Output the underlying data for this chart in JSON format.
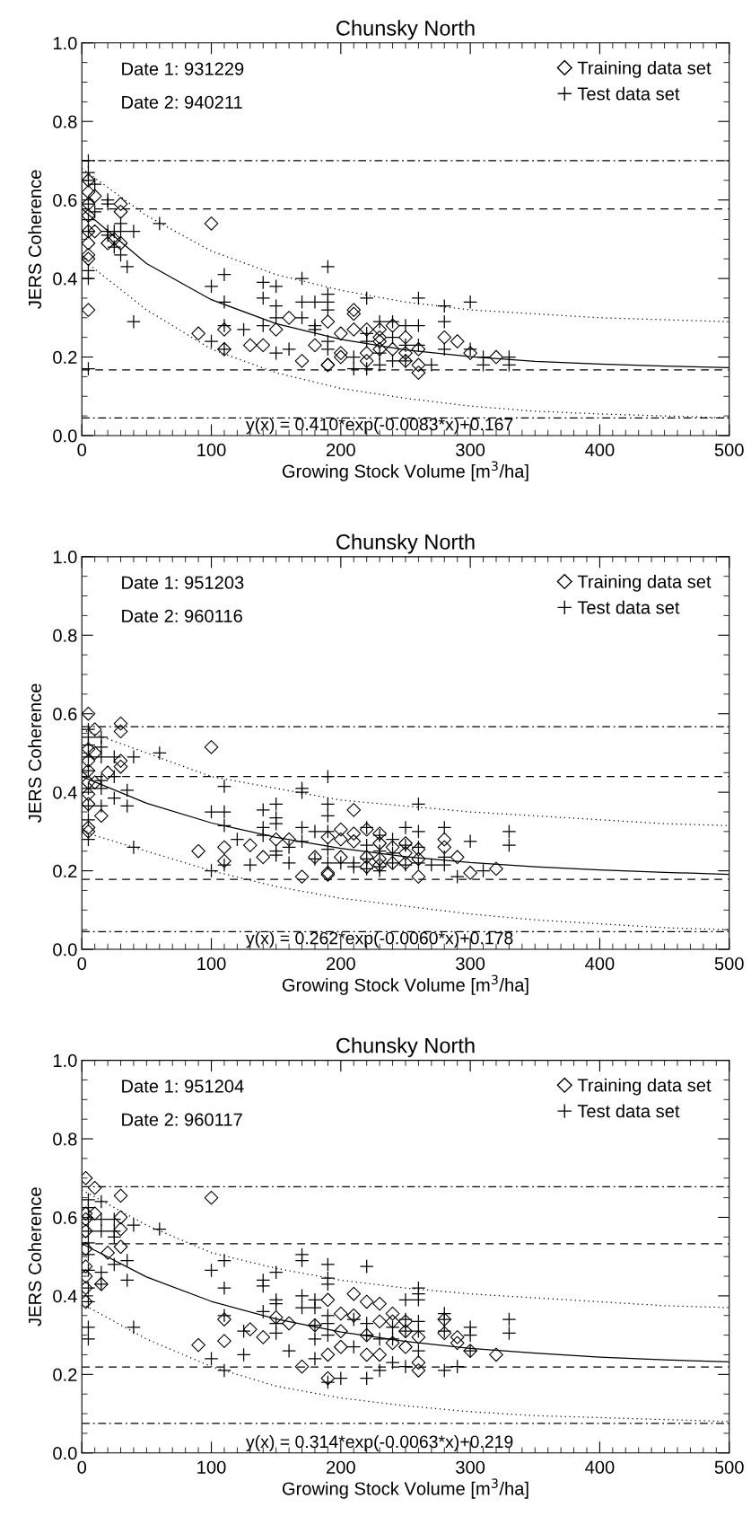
{
  "chart_data": [
    {
      "type": "scatter",
      "title": "Chunsky North",
      "xlabel": "Growing Stock Volume [m$^{3}$/ha]",
      "ylabel": "JERS Coherence",
      "annotations": [
        "Date 1: 931229",
        "Date 2: 940211",
        "y(x) = 0.410*exp(-0.0083*x)+0.167"
      ],
      "xlim": [
        0,
        500
      ],
      "ylim": [
        0,
        1
      ],
      "xticks": [
        0,
        {
          "value": 10,
          "label": null
        },
        {
          "value": 20,
          "label": null
        },
        {
          "value": 30,
          "label": null
        },
        {
          "value": 40,
          "label": null
        },
        {
          "value": 50,
          "label": null
        },
        {
          "value": 60,
          "label": null
        },
        {
          "value": 70,
          "label": null
        },
        {
          "value": 80,
          "label": null
        },
        {
          "value": 90,
          "label": null
        },
        100,
        {
          "value": 110,
          "label": null
        },
        {
          "value": 120,
          "label": null
        },
        {
          "value": 130,
          "label": null
        },
        {
          "value": 140,
          "label": null
        },
        {
          "value": 150,
          "label": null
        },
        {
          "value": 160,
          "label": null
        },
        {
          "value": 170,
          "label": null
        },
        {
          "value": 180,
          "label": null
        },
        {
          "value": 190,
          "label": null
        },
        200,
        {
          "value": 210,
          "label": null
        },
        {
          "value": 220,
          "label": null
        },
        {
          "value": 230,
          "label": null
        },
        {
          "value": 240,
          "label": null
        },
        {
          "value": 250,
          "label": null
        },
        {
          "value": 260,
          "label": null
        },
        {
          "value": 270,
          "label": null
        },
        {
          "value": 280,
          "label": null
        },
        {
          "value": 290,
          "label": null
        },
        300,
        {
          "value": 310,
          "label": null
        },
        {
          "value": 320,
          "label": null
        },
        {
          "value": 330,
          "label": null
        },
        {
          "value": 340,
          "label": null
        },
        {
          "value": 350,
          "label": null
        },
        {
          "value": 360,
          "label": null
        },
        {
          "value": 370,
          "label": null
        },
        {
          "value": 380,
          "label": null
        },
        {
          "value": 390,
          "label": null
        },
        400,
        {
          "value": 410,
          "label": null
        },
        {
          "value": 420,
          "label": null
        },
        {
          "value": 430,
          "label": null
        },
        {
          "value": 440,
          "label": null
        },
        {
          "value": 450,
          "label": null
        },
        {
          "value": 460,
          "label": null
        },
        {
          "value": 470,
          "label": null
        },
        {
          "value": 480,
          "label": null
        },
        {
          "value": 490,
          "label": null
        },
        500
      ],
      "yticks": [
        {
          "value": 0,
          "label": "0.0"
        },
        {
          "value": 0.05,
          "label": null
        },
        {
          "value": 0.1,
          "label": null
        },
        {
          "value": 0.15,
          "label": null
        },
        0.2,
        {
          "value": 0.25,
          "label": null
        },
        {
          "value": 0.3,
          "label": null
        },
        {
          "value": 0.35,
          "label": null
        },
        0.4,
        {
          "value": 0.45,
          "label": null
        },
        {
          "value": 0.5,
          "label": null
        },
        {
          "value": 0.55,
          "label": null
        },
        0.6,
        {
          "value": 0.65,
          "label": null
        },
        {
          "value": 0.7,
          "label": null
        },
        {
          "value": 0.75,
          "label": null
        },
        0.8,
        {
          "value": 0.85,
          "label": null
        },
        {
          "value": 0.9,
          "label": null
        },
        {
          "value": 0.95,
          "label": null
        },
        {
          "value": 1,
          "label": "1.0"
        }
      ],
      "grid": false,
      "legend": "top right",
      "ref_lines": [
        {
          "axis": "y",
          "value": 0.7,
          "line_style": "dashdot",
          "color": "#000000"
        },
        {
          "axis": "y",
          "value": 0.577,
          "line_style": "dashed",
          "color": "#000000"
        },
        {
          "axis": "y",
          "value": 0.167,
          "line_style": "dashed",
          "color": "#000000"
        },
        {
          "axis": "y",
          "value": 0.045,
          "line_style": "dashdot",
          "color": "#000000"
        }
      ],
      "series": [
        {
          "name": "Training data set",
          "marker": "diamond",
          "color": "#000000",
          "x": [
            5,
            5,
            5,
            5,
            5,
            5,
            5,
            5,
            5,
            10,
            10,
            20,
            25,
            30,
            30,
            30,
            100,
            90,
            110,
            110,
            130,
            140,
            150,
            160,
            170,
            180,
            190,
            190,
            190,
            200,
            200,
            200,
            210,
            210,
            210,
            220,
            220,
            220,
            230,
            230,
            230,
            230,
            240,
            240,
            250,
            250,
            250,
            260,
            260,
            260,
            280,
            290,
            300,
            320
          ],
          "values": [
            0.65,
            0.62,
            0.59,
            0.56,
            0.52,
            0.49,
            0.46,
            0.45,
            0.32,
            0.61,
            0.52,
            0.49,
            0.5,
            0.59,
            0.57,
            0.49,
            0.54,
            0.26,
            0.27,
            0.22,
            0.23,
            0.23,
            0.27,
            0.3,
            0.19,
            0.23,
            0.29,
            0.18,
            0.18,
            0.26,
            0.21,
            0.2,
            0.32,
            0.31,
            0.27,
            0.27,
            0.21,
            0.19,
            0.27,
            0.25,
            0.24,
            0.22,
            0.28,
            0.22,
            0.25,
            0.21,
            0.19,
            0.22,
            0.16,
            0.18,
            0.25,
            0.24,
            0.21,
            0.2
          ]
        },
        {
          "name": "Test data set",
          "marker": "cross",
          "color": "#000000",
          "x": [
            5,
            5,
            5,
            5,
            5,
            5,
            5,
            5,
            5,
            10,
            10,
            20,
            20,
            20,
            20,
            25,
            25,
            30,
            30,
            30,
            35,
            40,
            40,
            60,
            100,
            100,
            110,
            110,
            110,
            110,
            125,
            140,
            140,
            140,
            150,
            150,
            150,
            150,
            160,
            170,
            170,
            170,
            180,
            180,
            180,
            190,
            190,
            190,
            190,
            190,
            190,
            210,
            210,
            220,
            220,
            220,
            220,
            230,
            230,
            230,
            240,
            240,
            240,
            250,
            250,
            250,
            260,
            260,
            260,
            270,
            280,
            280,
            280,
            300,
            300,
            310,
            310,
            330,
            330
          ],
          "values": [
            0.7,
            0.67,
            0.65,
            0.59,
            0.55,
            0.52,
            0.42,
            0.4,
            0.17,
            0.64,
            0.57,
            0.6,
            0.59,
            0.52,
            0.51,
            0.52,
            0.48,
            0.54,
            0.52,
            0.46,
            0.43,
            0.52,
            0.29,
            0.54,
            0.38,
            0.24,
            0.41,
            0.34,
            0.28,
            0.22,
            0.27,
            0.39,
            0.35,
            0.28,
            0.38,
            0.33,
            0.3,
            0.21,
            0.22,
            0.4,
            0.34,
            0.3,
            0.34,
            0.28,
            0.27,
            0.43,
            0.36,
            0.34,
            0.32,
            0.24,
            0.22,
            0.2,
            0.17,
            0.35,
            0.26,
            0.24,
            0.17,
            0.29,
            0.21,
            0.18,
            0.29,
            0.25,
            0.19,
            0.28,
            0.23,
            0.19,
            0.35,
            0.28,
            0.23,
            0.18,
            0.33,
            0.29,
            0.22,
            0.34,
            0.22,
            0.2,
            0.18,
            0.2,
            0.18
          ]
        },
        {
          "type": "line",
          "line_style": "solid",
          "color": "#000000",
          "x": [
            0,
            50,
            100,
            150,
            200,
            250,
            300,
            350,
            400,
            450,
            500
          ],
          "values": [
            0.577,
            0.438,
            0.346,
            0.285,
            0.245,
            0.218,
            0.201,
            0.189,
            0.182,
            0.177,
            0.173
          ]
        },
        {
          "type": "line",
          "line_style": "dotted",
          "color": "#000000",
          "x": [
            0,
            50,
            100,
            150,
            200,
            250,
            300,
            350,
            400,
            450,
            500
          ],
          "values": [
            0.68,
            0.56,
            0.47,
            0.41,
            0.37,
            0.34,
            0.32,
            0.31,
            0.3,
            0.295,
            0.29
          ]
        },
        {
          "type": "line",
          "line_style": "dotted",
          "color": "#000000",
          "x": [
            0,
            50,
            100,
            150,
            200,
            250,
            300,
            350,
            400,
            450,
            500
          ],
          "values": [
            0.45,
            0.32,
            0.22,
            0.16,
            0.12,
            0.095,
            0.075,
            0.062,
            0.055,
            0.05,
            0.045
          ]
        }
      ]
    },
    {
      "type": "scatter",
      "title": "Chunsky North",
      "xlabel": "Growing Stock Volume [m$^{3}$/ha]",
      "ylabel": "JERS Coherence",
      "annotations": [
        "Date 1: 951203",
        "Date 2: 960116",
        "y(x) = 0.262*exp(-0.0060*x)+0.178"
      ],
      "xlim": [
        0,
        500
      ],
      "ylim": [
        0,
        1
      ],
      "xticks": [
        0,
        {
          "value": 10,
          "label": null
        },
        {
          "value": 20,
          "label": null
        },
        {
          "value": 30,
          "label": null
        },
        {
          "value": 40,
          "label": null
        },
        {
          "value": 50,
          "label": null
        },
        {
          "value": 60,
          "label": null
        },
        {
          "value": 70,
          "label": null
        },
        {
          "value": 80,
          "label": null
        },
        {
          "value": 90,
          "label": null
        },
        100,
        {
          "value": 110,
          "label": null
        },
        {
          "value": 120,
          "label": null
        },
        {
          "value": 130,
          "label": null
        },
        {
          "value": 140,
          "label": null
        },
        {
          "value": 150,
          "label": null
        },
        {
          "value": 160,
          "label": null
        },
        {
          "value": 170,
          "label": null
        },
        {
          "value": 180,
          "label": null
        },
        {
          "value": 190,
          "label": null
        },
        200,
        {
          "value": 210,
          "label": null
        },
        {
          "value": 220,
          "label": null
        },
        {
          "value": 230,
          "label": null
        },
        {
          "value": 240,
          "label": null
        },
        {
          "value": 250,
          "label": null
        },
        {
          "value": 260,
          "label": null
        },
        {
          "value": 270,
          "label": null
        },
        {
          "value": 280,
          "label": null
        },
        {
          "value": 290,
          "label": null
        },
        300,
        {
          "value": 310,
          "label": null
        },
        {
          "value": 320,
          "label": null
        },
        {
          "value": 330,
          "label": null
        },
        {
          "value": 340,
          "label": null
        },
        {
          "value": 350,
          "label": null
        },
        {
          "value": 360,
          "label": null
        },
        {
          "value": 370,
          "label": null
        },
        {
          "value": 380,
          "label": null
        },
        {
          "value": 390,
          "label": null
        },
        400,
        {
          "value": 410,
          "label": null
        },
        {
          "value": 420,
          "label": null
        },
        {
          "value": 430,
          "label": null
        },
        {
          "value": 440,
          "label": null
        },
        {
          "value": 450,
          "label": null
        },
        {
          "value": 460,
          "label": null
        },
        {
          "value": 470,
          "label": null
        },
        {
          "value": 480,
          "label": null
        },
        {
          "value": 490,
          "label": null
        },
        500
      ],
      "yticks": [
        {
          "value": 0,
          "label": "0.0"
        },
        {
          "value": 0.05,
          "label": null
        },
        {
          "value": 0.1,
          "label": null
        },
        {
          "value": 0.15,
          "label": null
        },
        0.2,
        {
          "value": 0.25,
          "label": null
        },
        {
          "value": 0.3,
          "label": null
        },
        {
          "value": 0.35,
          "label": null
        },
        0.4,
        {
          "value": 0.45,
          "label": null
        },
        {
          "value": 0.5,
          "label": null
        },
        {
          "value": 0.55,
          "label": null
        },
        0.6,
        {
          "value": 0.65,
          "label": null
        },
        {
          "value": 0.7,
          "label": null
        },
        {
          "value": 0.75,
          "label": null
        },
        0.8,
        {
          "value": 0.85,
          "label": null
        },
        {
          "value": 0.9,
          "label": null
        },
        {
          "value": 0.95,
          "label": null
        },
        {
          "value": 1,
          "label": "1.0"
        }
      ],
      "grid": false,
      "legend": "top right",
      "ref_lines": [
        {
          "axis": "y",
          "value": 0.567,
          "line_style": "dashdot",
          "color": "#000000"
        },
        {
          "axis": "y",
          "value": 0.44,
          "line_style": "dashed",
          "color": "#000000"
        },
        {
          "axis": "y",
          "value": 0.178,
          "line_style": "dashed",
          "color": "#000000"
        },
        {
          "axis": "y",
          "value": 0.045,
          "line_style": "dashdot",
          "color": "#000000"
        }
      ],
      "series": [
        {
          "name": "Training data set",
          "marker": "diamond",
          "color": "#000000",
          "x": [
            5,
            5,
            5,
            5,
            5,
            5,
            5,
            5,
            5,
            10,
            10,
            10,
            15,
            20,
            30,
            30,
            30,
            30,
            100,
            90,
            110,
            110,
            130,
            140,
            150,
            160,
            170,
            180,
            190,
            190,
            190,
            200,
            200,
            200,
            210,
            210,
            210,
            220,
            220,
            220,
            230,
            230,
            230,
            230,
            240,
            240,
            250,
            250,
            250,
            260,
            260,
            260,
            280,
            280,
            290,
            300,
            320
          ],
          "values": [
            0.6,
            0.51,
            0.48,
            0.455,
            0.425,
            0.395,
            0.37,
            0.31,
            0.3,
            0.56,
            0.5,
            0.425,
            0.34,
            0.45,
            0.575,
            0.555,
            0.48,
            0.465,
            0.515,
            0.25,
            0.26,
            0.225,
            0.265,
            0.235,
            0.28,
            0.28,
            0.185,
            0.235,
            0.285,
            0.195,
            0.19,
            0.305,
            0.28,
            0.235,
            0.355,
            0.295,
            0.275,
            0.305,
            0.235,
            0.21,
            0.295,
            0.27,
            0.23,
            0.215,
            0.26,
            0.22,
            0.27,
            0.245,
            0.22,
            0.255,
            0.23,
            0.185,
            0.28,
            0.26,
            0.235,
            0.195,
            0.205
          ]
        },
        {
          "name": "Test data set",
          "marker": "cross",
          "color": "#000000",
          "x": [
            5,
            5,
            5,
            5,
            5,
            5,
            5,
            5,
            5,
            15,
            15,
            15,
            15,
            15,
            15,
            25,
            25,
            25,
            35,
            35,
            40,
            40,
            60,
            100,
            100,
            110,
            110,
            110,
            110,
            120,
            130,
            140,
            140,
            140,
            150,
            150,
            150,
            150,
            150,
            160,
            160,
            170,
            170,
            170,
            170,
            180,
            180,
            190,
            190,
            190,
            190,
            190,
            190,
            200,
            210,
            210,
            220,
            220,
            220,
            220,
            230,
            230,
            230,
            230,
            240,
            240,
            240,
            250,
            250,
            250,
            260,
            260,
            260,
            260,
            270,
            280,
            280,
            280,
            290,
            300,
            310,
            330,
            330
          ],
          "values": [
            0.56,
            0.54,
            0.52,
            0.49,
            0.455,
            0.41,
            0.365,
            0.33,
            0.28,
            0.54,
            0.515,
            0.49,
            0.43,
            0.41,
            0.365,
            0.49,
            0.44,
            0.385,
            0.405,
            0.365,
            0.49,
            0.26,
            0.5,
            0.35,
            0.2,
            0.415,
            0.35,
            0.315,
            0.215,
            0.28,
            0.215,
            0.355,
            0.31,
            0.29,
            0.37,
            0.335,
            0.32,
            0.25,
            0.24,
            0.26,
            0.22,
            0.41,
            0.4,
            0.31,
            0.275,
            0.3,
            0.23,
            0.44,
            0.37,
            0.34,
            0.3,
            0.255,
            0.22,
            0.22,
            0.22,
            0.21,
            0.31,
            0.265,
            0.23,
            0.205,
            0.29,
            0.25,
            0.21,
            0.2,
            0.28,
            0.245,
            0.22,
            0.31,
            0.265,
            0.215,
            0.37,
            0.3,
            0.26,
            0.22,
            0.215,
            0.31,
            0.235,
            0.215,
            0.185,
            0.275,
            0.2,
            0.3,
            0.265
          ]
        },
        {
          "type": "line",
          "line_style": "solid",
          "color": "#000000",
          "x": [
            0,
            50,
            100,
            150,
            200,
            250,
            300,
            350,
            400,
            450,
            500
          ],
          "values": [
            0.44,
            0.372,
            0.322,
            0.285,
            0.257,
            0.236,
            0.221,
            0.21,
            0.202,
            0.196,
            0.191
          ]
        },
        {
          "type": "line",
          "line_style": "dotted",
          "color": "#000000",
          "x": [
            0,
            50,
            100,
            150,
            200,
            250,
            300,
            350,
            400,
            450,
            500
          ],
          "values": [
            0.56,
            0.5,
            0.44,
            0.41,
            0.38,
            0.365,
            0.35,
            0.34,
            0.33,
            0.32,
            0.315
          ]
        },
        {
          "type": "line",
          "line_style": "dotted",
          "color": "#000000",
          "x": [
            0,
            50,
            100,
            150,
            200,
            250,
            300,
            350,
            400,
            450,
            500
          ],
          "values": [
            0.3,
            0.25,
            0.2,
            0.16,
            0.13,
            0.11,
            0.09,
            0.075,
            0.065,
            0.055,
            0.05
          ]
        }
      ]
    },
    {
      "type": "scatter",
      "title": "Chunsky North",
      "xlabel": "Growing Stock Volume [m$^{3}$/ha]",
      "ylabel": "JERS Coherence",
      "annotations": [
        "Date 1: 951204",
        "Date 2: 960117",
        "y(x) = 0.314*exp(-0.0063*x)+0.219"
      ],
      "xlim": [
        0,
        500
      ],
      "ylim": [
        0,
        1
      ],
      "xticks": [
        0,
        {
          "value": 10,
          "label": null
        },
        {
          "value": 20,
          "label": null
        },
        {
          "value": 30,
          "label": null
        },
        {
          "value": 40,
          "label": null
        },
        {
          "value": 50,
          "label": null
        },
        {
          "value": 60,
          "label": null
        },
        {
          "value": 70,
          "label": null
        },
        {
          "value": 80,
          "label": null
        },
        {
          "value": 90,
          "label": null
        },
        100,
        {
          "value": 110,
          "label": null
        },
        {
          "value": 120,
          "label": null
        },
        {
          "value": 130,
          "label": null
        },
        {
          "value": 140,
          "label": null
        },
        {
          "value": 150,
          "label": null
        },
        {
          "value": 160,
          "label": null
        },
        {
          "value": 170,
          "label": null
        },
        {
          "value": 180,
          "label": null
        },
        {
          "value": 190,
          "label": null
        },
        200,
        {
          "value": 210,
          "label": null
        },
        {
          "value": 220,
          "label": null
        },
        {
          "value": 230,
          "label": null
        },
        {
          "value": 240,
          "label": null
        },
        {
          "value": 250,
          "label": null
        },
        {
          "value": 260,
          "label": null
        },
        {
          "value": 270,
          "label": null
        },
        {
          "value": 280,
          "label": null
        },
        {
          "value": 290,
          "label": null
        },
        300,
        {
          "value": 310,
          "label": null
        },
        {
          "value": 320,
          "label": null
        },
        {
          "value": 330,
          "label": null
        },
        {
          "value": 340,
          "label": null
        },
        {
          "value": 350,
          "label": null
        },
        {
          "value": 360,
          "label": null
        },
        {
          "value": 370,
          "label": null
        },
        {
          "value": 380,
          "label": null
        },
        {
          "value": 390,
          "label": null
        },
        400,
        {
          "value": 410,
          "label": null
        },
        {
          "value": 420,
          "label": null
        },
        {
          "value": 430,
          "label": null
        },
        {
          "value": 440,
          "label": null
        },
        {
          "value": 450,
          "label": null
        },
        {
          "value": 460,
          "label": null
        },
        {
          "value": 470,
          "label": null
        },
        {
          "value": 480,
          "label": null
        },
        {
          "value": 490,
          "label": null
        },
        500
      ],
      "yticks": [
        {
          "value": 0,
          "label": "0.0"
        },
        {
          "value": 0.05,
          "label": null
        },
        {
          "value": 0.1,
          "label": null
        },
        {
          "value": 0.15,
          "label": null
        },
        0.2,
        {
          "value": 0.25,
          "label": null
        },
        {
          "value": 0.3,
          "label": null
        },
        {
          "value": 0.35,
          "label": null
        },
        0.4,
        {
          "value": 0.45,
          "label": null
        },
        {
          "value": 0.5,
          "label": null
        },
        {
          "value": 0.55,
          "label": null
        },
        0.6,
        {
          "value": 0.65,
          "label": null
        },
        {
          "value": 0.7,
          "label": null
        },
        {
          "value": 0.75,
          "label": null
        },
        0.8,
        {
          "value": 0.85,
          "label": null
        },
        {
          "value": 0.9,
          "label": null
        },
        {
          "value": 0.95,
          "label": null
        },
        {
          "value": 1,
          "label": "1.0"
        }
      ],
      "grid": false,
      "legend": "top right",
      "ref_lines": [
        {
          "axis": "y",
          "value": 0.678,
          "line_style": "dashdot",
          "color": "#000000"
        },
        {
          "axis": "y",
          "value": 0.533,
          "line_style": "dashed",
          "color": "#000000"
        },
        {
          "axis": "y",
          "value": 0.219,
          "line_style": "dashed",
          "color": "#000000"
        },
        {
          "axis": "y",
          "value": 0.075,
          "line_style": "dashdot",
          "color": "#000000"
        }
      ],
      "series": [
        {
          "name": "Training data set",
          "marker": "diamond",
          "color": "#000000",
          "x": [
            3,
            3,
            3,
            3,
            3,
            3,
            3,
            3,
            3,
            10,
            10,
            15,
            20,
            30,
            30,
            30,
            30,
            100,
            90,
            110,
            110,
            130,
            140,
            150,
            160,
            170,
            180,
            190,
            190,
            190,
            200,
            200,
            200,
            210,
            210,
            220,
            220,
            220,
            230,
            230,
            230,
            240,
            240,
            240,
            250,
            250,
            250,
            260,
            260,
            260,
            280,
            280,
            290,
            290,
            300,
            320
          ],
          "values": [
            0.7,
            0.61,
            0.595,
            0.565,
            0.52,
            0.475,
            0.45,
            0.42,
            0.385,
            0.675,
            0.61,
            0.43,
            0.51,
            0.655,
            0.6,
            0.57,
            0.525,
            0.65,
            0.275,
            0.34,
            0.285,
            0.315,
            0.295,
            0.345,
            0.33,
            0.22,
            0.325,
            0.39,
            0.25,
            0.19,
            0.355,
            0.31,
            0.27,
            0.405,
            0.35,
            0.385,
            0.3,
            0.25,
            0.38,
            0.335,
            0.25,
            0.355,
            0.335,
            0.28,
            0.335,
            0.31,
            0.27,
            0.295,
            0.23,
            0.21,
            0.34,
            0.305,
            0.295,
            0.28,
            0.26,
            0.25
          ]
        },
        {
          "name": "Test data set",
          "marker": "cross",
          "color": "#000000",
          "x": [
            5,
            5,
            5,
            5,
            5,
            5,
            5,
            5,
            5,
            5,
            5,
            15,
            15,
            15,
            15,
            15,
            25,
            25,
            25,
            25,
            35,
            35,
            40,
            40,
            60,
            100,
            100,
            110,
            110,
            110,
            110,
            125,
            125,
            140,
            140,
            140,
            150,
            150,
            150,
            150,
            150,
            160,
            170,
            170,
            170,
            170,
            180,
            180,
            180,
            180,
            180,
            190,
            190,
            190,
            190,
            190,
            190,
            190,
            200,
            210,
            210,
            220,
            220,
            220,
            220,
            230,
            230,
            240,
            240,
            240,
            250,
            250,
            250,
            250,
            260,
            260,
            260,
            260,
            260,
            260,
            280,
            280,
            280,
            280,
            290,
            300,
            300,
            300,
            330,
            330
          ],
          "values": [
            0.645,
            0.625,
            0.595,
            0.565,
            0.535,
            0.505,
            0.465,
            0.42,
            0.385,
            0.32,
            0.29,
            0.64,
            0.595,
            0.565,
            0.46,
            0.43,
            0.595,
            0.565,
            0.55,
            0.48,
            0.49,
            0.44,
            0.58,
            0.32,
            0.57,
            0.465,
            0.24,
            0.49,
            0.42,
            0.35,
            0.21,
            0.31,
            0.25,
            0.44,
            0.425,
            0.36,
            0.46,
            0.39,
            0.38,
            0.33,
            0.305,
            0.26,
            0.505,
            0.49,
            0.4,
            0.37,
            0.39,
            0.37,
            0.325,
            0.29,
            0.24,
            0.48,
            0.445,
            0.43,
            0.35,
            0.33,
            0.3,
            0.18,
            0.19,
            0.34,
            0.27,
            0.475,
            0.33,
            0.3,
            0.19,
            0.29,
            0.21,
            0.32,
            0.29,
            0.23,
            0.39,
            0.34,
            0.31,
            0.22,
            0.42,
            0.405,
            0.39,
            0.335,
            0.31,
            0.26,
            0.355,
            0.34,
            0.31,
            0.21,
            0.22,
            0.32,
            0.3,
            0.26,
            0.34,
            0.305
          ]
        },
        {
          "type": "line",
          "line_style": "solid",
          "color": "#000000",
          "x": [
            0,
            50,
            100,
            150,
            200,
            250,
            300,
            350,
            400,
            450,
            500
          ],
          "values": [
            0.533,
            0.448,
            0.386,
            0.341,
            0.308,
            0.284,
            0.266,
            0.254,
            0.244,
            0.237,
            0.232
          ]
        },
        {
          "type": "line",
          "line_style": "dotted",
          "color": "#000000",
          "x": [
            0,
            50,
            100,
            150,
            200,
            250,
            300,
            350,
            400,
            450,
            500
          ],
          "values": [
            0.67,
            0.58,
            0.51,
            0.47,
            0.44,
            0.42,
            0.405,
            0.395,
            0.385,
            0.375,
            0.37
          ]
        },
        {
          "type": "line",
          "line_style": "dotted",
          "color": "#000000",
          "x": [
            0,
            50,
            100,
            150,
            200,
            250,
            300,
            350,
            400,
            450,
            500
          ],
          "values": [
            0.38,
            0.29,
            0.22,
            0.17,
            0.14,
            0.12,
            0.105,
            0.095,
            0.09,
            0.085,
            0.08
          ]
        }
      ]
    }
  ]
}
